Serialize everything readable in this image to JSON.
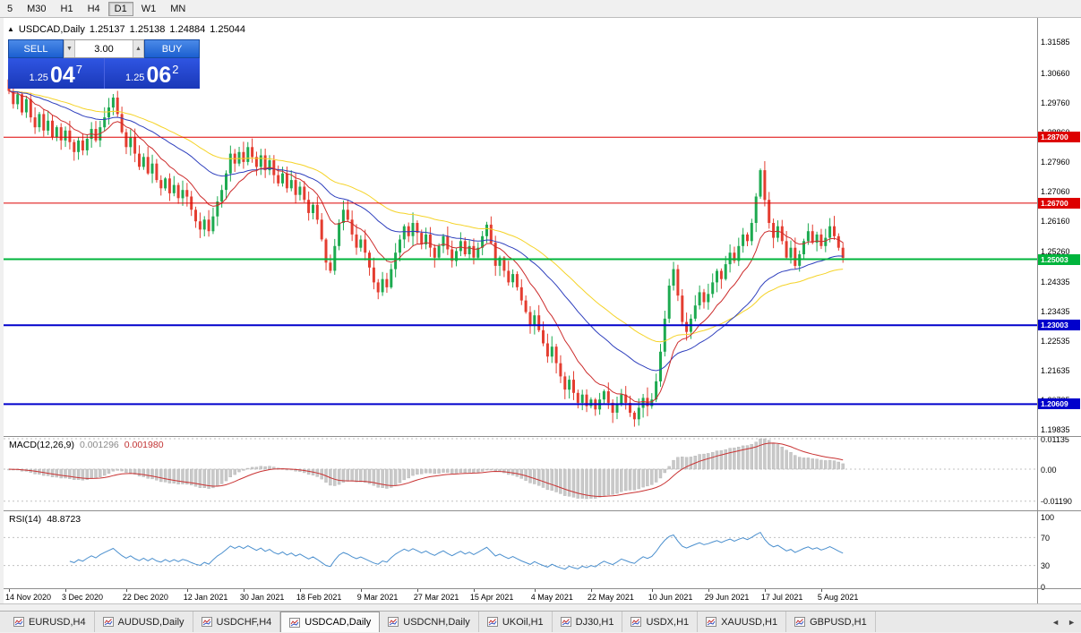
{
  "toolbar": {
    "timeframes": [
      {
        "label": "5",
        "active": false
      },
      {
        "label": "M30",
        "active": false
      },
      {
        "label": "H1",
        "active": false
      },
      {
        "label": "H4",
        "active": false
      },
      {
        "label": "D1",
        "active": true
      },
      {
        "label": "W1",
        "active": false
      },
      {
        "label": "MN",
        "active": false
      }
    ]
  },
  "quote_line": {
    "collapse_icon": "▲",
    "symbol": "USDCAD,Daily",
    "open": "1.25137",
    "high": "1.25138",
    "low": "1.24884",
    "close": "1.25044"
  },
  "trade_widget": {
    "sell_label": "SELL",
    "buy_label": "BUY",
    "volume": "3.00",
    "vol_down": "▼",
    "vol_up": "▲",
    "bid": {
      "prefix": "1.25",
      "big": "04",
      "sup": "7"
    },
    "ask": {
      "prefix": "1.25",
      "big": "06",
      "sup": "2"
    }
  },
  "levels": [
    {
      "price": 1.287,
      "label": "1.28700",
      "color": "#dd0000",
      "width": 1
    },
    {
      "price": 1.267,
      "label": "1.26700",
      "color": "#dd0000",
      "width": 1
    },
    {
      "price": 1.25003,
      "label": "1.25003",
      "color": "#00b43c",
      "width": 2
    },
    {
      "price": 1.23003,
      "label": "1.23003",
      "color": "#0000cc",
      "width": 2
    },
    {
      "price": 1.20609,
      "label": "1.20609",
      "color": "#0000cc",
      "width": 2
    }
  ],
  "price_axis": [
    "1.31585",
    "1.30660",
    "1.29760",
    "1.28860",
    "1.27960",
    "1.27060",
    "1.26160",
    "1.25260",
    "1.24335",
    "1.23435",
    "1.22535",
    "1.21635",
    "1.20735",
    "1.19835"
  ],
  "date_axis": [
    {
      "i": 0,
      "label": "14 Nov 2020"
    },
    {
      "i": 13,
      "label": "3 Dec 2020"
    },
    {
      "i": 27,
      "label": "22 Dec 2020"
    },
    {
      "i": 41,
      "label": "12 Jan 2021"
    },
    {
      "i": 54,
      "label": "30 Jan 2021"
    },
    {
      "i": 67,
      "label": "18 Feb 2021"
    },
    {
      "i": 81,
      "label": "9 Mar 2021"
    },
    {
      "i": 94,
      "label": "27 Mar 2021"
    },
    {
      "i": 107,
      "label": "15 Apr 2021"
    },
    {
      "i": 121,
      "label": "4 May 2021"
    },
    {
      "i": 134,
      "label": "22 May 2021"
    },
    {
      "i": 148,
      "label": "10 Jun 2021"
    },
    {
      "i": 161,
      "label": "29 Jun 2021"
    },
    {
      "i": 174,
      "label": "17 Jul 2021"
    },
    {
      "i": 187,
      "label": "5 Aug 2021"
    }
  ],
  "macd_panel": {
    "title": "MACD(12,26,9)",
    "value_main": "0.001296",
    "value_signal": "0.001980",
    "axis": [
      "0.01135",
      "0.00",
      "-0.01190"
    ]
  },
  "rsi_panel": {
    "title": "RSI(14)",
    "value": "48.8723",
    "axis": [
      "100",
      "70",
      "30",
      "0"
    ],
    "levels": [
      70,
      30
    ]
  },
  "tabs": {
    "nav_left": "◄",
    "nav_right": "►",
    "items": [
      {
        "label": "EURUSD,H4",
        "active": false
      },
      {
        "label": "AUDUSD,Daily",
        "active": false
      },
      {
        "label": "USDCHF,H4",
        "active": false
      },
      {
        "label": "USDCAD,Daily",
        "active": true
      },
      {
        "label": "USDCNH,Daily",
        "active": false
      },
      {
        "label": "UKOil,H1",
        "active": false
      },
      {
        "label": "DJ30,H1",
        "active": false
      },
      {
        "label": "USDX,H1",
        "active": false
      },
      {
        "label": "XAUUSD,H1",
        "active": false
      },
      {
        "label": "GBPUSD,H1",
        "active": false
      }
    ]
  },
  "chart_data": {
    "type": "candlestick",
    "symbol": "USDCAD",
    "timeframe": "Daily",
    "price_range": [
      1.1967,
      1.3226
    ],
    "up_color": "#1daa50",
    "down_color": "#e43d30",
    "ma_lines": [
      {
        "period": 12,
        "color": "#cc2b2b"
      },
      {
        "period": 34,
        "color": "#2e3fbd"
      },
      {
        "period": 55,
        "color": "#f5d327"
      }
    ],
    "macd": {
      "fast": 12,
      "slow": 26,
      "signal": 9,
      "bar_color": "#c9c9c9",
      "signal_color": "#c93333"
    },
    "rsi": {
      "period": 14,
      "color": "#4a8fce"
    },
    "closes": [
      1.301,
      1.297,
      1.3,
      1.2945,
      1.2985,
      1.293,
      1.29,
      1.294,
      1.289,
      1.292,
      1.287,
      1.29,
      1.286,
      1.289,
      1.2855,
      1.2825,
      1.286,
      1.283,
      1.2865,
      1.2895,
      1.286,
      1.29,
      1.293,
      1.296,
      1.299,
      1.294,
      1.2885,
      1.284,
      1.287,
      1.282,
      1.278,
      1.281,
      1.276,
      1.279,
      1.274,
      1.2715,
      1.2745,
      1.27,
      1.2725,
      1.2685,
      1.271,
      1.269,
      1.265,
      1.2615,
      1.259,
      1.262,
      1.2585,
      1.263,
      1.2675,
      1.271,
      1.276,
      1.282,
      1.279,
      1.2825,
      1.2795,
      1.284,
      1.281,
      1.278,
      1.2815,
      1.277,
      1.28,
      1.2755,
      1.273,
      1.276,
      1.2715,
      1.274,
      1.2695,
      1.272,
      1.268,
      1.264,
      1.2665,
      1.262,
      1.256,
      1.249,
      1.2465,
      1.254,
      1.261,
      1.265,
      1.262,
      1.2575,
      1.2535,
      1.256,
      1.252,
      1.2475,
      1.243,
      1.24,
      1.244,
      1.2415,
      1.247,
      1.252,
      1.256,
      1.26,
      1.257,
      1.261,
      1.258,
      1.2545,
      1.2575,
      1.2535,
      1.2505,
      1.254,
      1.257,
      1.253,
      1.2495,
      1.2525,
      1.2555,
      1.2515,
      1.254,
      1.2505,
      1.2535,
      1.257,
      1.2605,
      1.255,
      1.248,
      1.2505,
      1.2465,
      1.243,
      1.2455,
      1.2415,
      1.2375,
      1.234,
      1.23,
      1.233,
      1.2285,
      1.2245,
      1.2205,
      1.2235,
      1.2185,
      1.2145,
      1.2105,
      1.2135,
      1.2095,
      1.2065,
      1.209,
      1.2055,
      1.2075,
      1.2045,
      1.2075,
      1.21,
      1.2065,
      1.2035,
      1.206,
      1.209,
      1.2065,
      1.2035,
      1.2015,
      1.205,
      1.208,
      1.2055,
      1.2075,
      1.213,
      1.222,
      1.232,
      1.242,
      1.247,
      1.239,
      1.231,
      1.228,
      1.232,
      1.236,
      1.24,
      1.237,
      1.2395,
      1.243,
      1.2465,
      1.244,
      1.2485,
      1.252,
      1.2495,
      1.254,
      1.2575,
      1.2555,
      1.261,
      1.269,
      1.277,
      1.268,
      1.261,
      1.2565,
      1.26,
      1.2555,
      1.2505,
      1.2535,
      1.248,
      1.2515,
      1.2555,
      1.2585,
      1.255,
      1.2575,
      1.254,
      1.2565,
      1.26,
      1.257,
      1.2535,
      1.25044
    ]
  }
}
